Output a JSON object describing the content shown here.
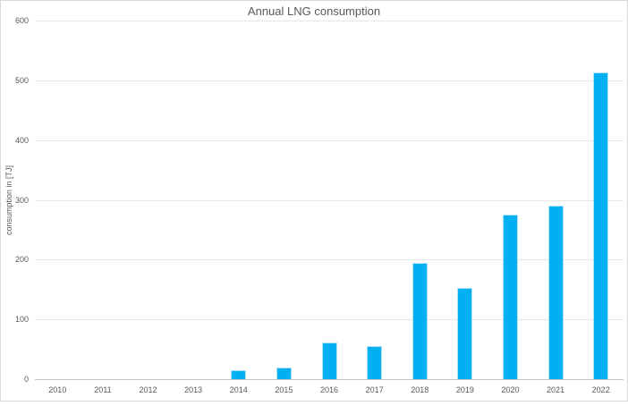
{
  "chart_data": {
    "type": "bar",
    "title": "Annual LNG consumption",
    "xlabel": "",
    "ylabel": "consumption in [TJ]",
    "categories": [
      "2010",
      "2011",
      "2012",
      "2013",
      "2014",
      "2015",
      "2016",
      "2017",
      "2018",
      "2019",
      "2020",
      "2021",
      "2022"
    ],
    "values": [
      0,
      0,
      0,
      0,
      15,
      20,
      62,
      56,
      195,
      152,
      275,
      291,
      513
    ],
    "ylim": [
      0,
      600
    ],
    "yticks": [
      0,
      100,
      200,
      300,
      400,
      500,
      600
    ],
    "grid": true,
    "legend_position": "none",
    "colors": {
      "bar_fill": "#00b0f0",
      "bar_edge": "#aee2f8",
      "gridline": "#e6e6e6",
      "axis_line": "#c6c6c6",
      "text": "#595959",
      "frame_border": "#d9d9d9",
      "background": "#ffffff"
    }
  }
}
